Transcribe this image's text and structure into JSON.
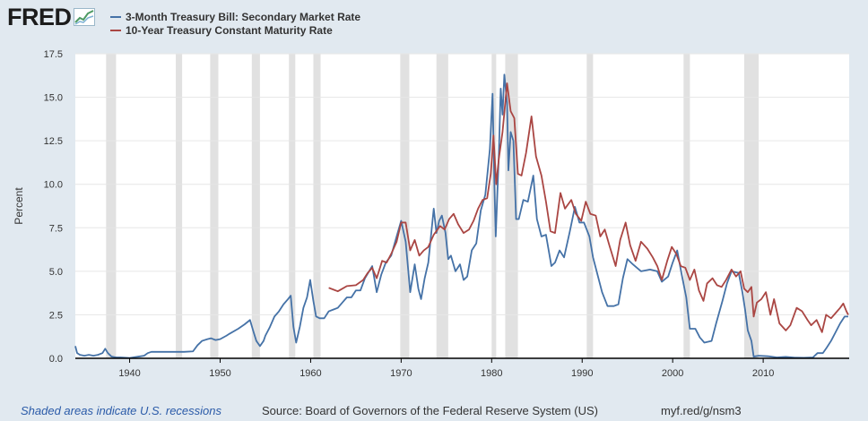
{
  "logo": {
    "text": "FRED"
  },
  "legend": {
    "items": [
      {
        "label": "3-Month Treasury Bill: Secondary Market Rate",
        "color": "#4572a7"
      },
      {
        "label": "10-Year Treasury Constant Maturity Rate",
        "color": "#aa4643"
      }
    ]
  },
  "footer": {
    "recession_note": "Shaded areas indicate U.S. recessions",
    "source": "Source: Board of Governors of the Federal Reserve System (US)",
    "url": "myf.red/g/nsm3"
  },
  "chart_data": {
    "type": "line",
    "title": "",
    "xlabel": "",
    "ylabel": "Percent",
    "xlim": [
      1934,
      2019.5
    ],
    "ylim": [
      0,
      17.5
    ],
    "yticks": [
      "0.0",
      "2.5",
      "5.0",
      "7.5",
      "10.0",
      "12.5",
      "15.0",
      "17.5"
    ],
    "xticks": [
      "1940",
      "1950",
      "1960",
      "1970",
      "1980",
      "1990",
      "2000",
      "2010"
    ],
    "grid": "horizontal",
    "recessions": [
      [
        1937.4,
        1938.5
      ],
      [
        1945.1,
        1945.8
      ],
      [
        1948.9,
        1949.8
      ],
      [
        1953.5,
        1954.4
      ],
      [
        1957.6,
        1958.3
      ],
      [
        1960.3,
        1961.1
      ],
      [
        1969.9,
        1970.9
      ],
      [
        1973.9,
        1975.2
      ],
      [
        1980.0,
        1980.5
      ],
      [
        1981.5,
        1982.9
      ],
      [
        1990.5,
        1991.2
      ],
      [
        2001.2,
        2001.9
      ],
      [
        2007.9,
        2009.5
      ]
    ],
    "series": [
      {
        "name": "3-Month Treasury Bill: Secondary Market Rate",
        "color": "#4572a7",
        "points": [
          [
            1934.0,
            0.7
          ],
          [
            1934.2,
            0.3
          ],
          [
            1934.5,
            0.2
          ],
          [
            1935.0,
            0.15
          ],
          [
            1935.5,
            0.2
          ],
          [
            1936.0,
            0.15
          ],
          [
            1936.5,
            0.2
          ],
          [
            1937.0,
            0.3
          ],
          [
            1937.3,
            0.55
          ],
          [
            1937.6,
            0.3
          ],
          [
            1938.0,
            0.1
          ],
          [
            1938.5,
            0.05
          ],
          [
            1939.0,
            0.05
          ],
          [
            1940.0,
            0.02
          ],
          [
            1941.0,
            0.1
          ],
          [
            1941.6,
            0.15
          ],
          [
            1942.0,
            0.3
          ],
          [
            1942.4,
            0.37
          ],
          [
            1943.0,
            0.37
          ],
          [
            1944.0,
            0.37
          ],
          [
            1945.0,
            0.37
          ],
          [
            1946.0,
            0.37
          ],
          [
            1947.0,
            0.4
          ],
          [
            1947.5,
            0.75
          ],
          [
            1948.0,
            1.0
          ],
          [
            1948.6,
            1.1
          ],
          [
            1949.0,
            1.15
          ],
          [
            1949.5,
            1.05
          ],
          [
            1950.0,
            1.1
          ],
          [
            1950.7,
            1.3
          ],
          [
            1951.0,
            1.4
          ],
          [
            1952.0,
            1.7
          ],
          [
            1952.7,
            1.95
          ],
          [
            1953.3,
            2.2
          ],
          [
            1953.7,
            1.5
          ],
          [
            1954.0,
            1.0
          ],
          [
            1954.4,
            0.7
          ],
          [
            1954.8,
            1.0
          ],
          [
            1955.0,
            1.3
          ],
          [
            1955.5,
            1.8
          ],
          [
            1956.0,
            2.4
          ],
          [
            1956.5,
            2.7
          ],
          [
            1957.0,
            3.1
          ],
          [
            1957.5,
            3.4
          ],
          [
            1957.8,
            3.6
          ],
          [
            1958.1,
            1.8
          ],
          [
            1958.4,
            0.9
          ],
          [
            1958.8,
            1.8
          ],
          [
            1959.2,
            2.9
          ],
          [
            1959.6,
            3.5
          ],
          [
            1959.95,
            4.5
          ],
          [
            1960.3,
            3.3
          ],
          [
            1960.6,
            2.4
          ],
          [
            1961.0,
            2.3
          ],
          [
            1961.5,
            2.3
          ],
          [
            1962.0,
            2.7
          ],
          [
            1962.5,
            2.8
          ],
          [
            1963.0,
            2.9
          ],
          [
            1963.5,
            3.2
          ],
          [
            1964.0,
            3.5
          ],
          [
            1964.5,
            3.5
          ],
          [
            1965.0,
            3.9
          ],
          [
            1965.5,
            3.9
          ],
          [
            1966.0,
            4.6
          ],
          [
            1966.8,
            5.3
          ],
          [
            1967.3,
            3.8
          ],
          [
            1967.8,
            4.8
          ],
          [
            1968.3,
            5.5
          ],
          [
            1968.9,
            5.9
          ],
          [
            1969.5,
            7.0
          ],
          [
            1970.0,
            7.9
          ],
          [
            1970.5,
            6.7
          ],
          [
            1971.0,
            3.8
          ],
          [
            1971.5,
            5.4
          ],
          [
            1971.9,
            4.0
          ],
          [
            1972.2,
            3.4
          ],
          [
            1972.6,
            4.6
          ],
          [
            1973.0,
            5.5
          ],
          [
            1973.6,
            8.6
          ],
          [
            1973.9,
            7.2
          ],
          [
            1974.2,
            7.9
          ],
          [
            1974.5,
            8.2
          ],
          [
            1974.9,
            7.2
          ],
          [
            1975.2,
            5.7
          ],
          [
            1975.5,
            5.9
          ],
          [
            1976.0,
            5.0
          ],
          [
            1976.5,
            5.4
          ],
          [
            1976.9,
            4.5
          ],
          [
            1977.3,
            4.7
          ],
          [
            1977.8,
            6.2
          ],
          [
            1978.3,
            6.6
          ],
          [
            1978.8,
            8.5
          ],
          [
            1979.3,
            9.4
          ],
          [
            1979.8,
            12.0
          ],
          [
            1980.1,
            15.2
          ],
          [
            1980.3,
            10.0
          ],
          [
            1980.45,
            7.0
          ],
          [
            1980.8,
            11.8
          ],
          [
            1981.0,
            15.5
          ],
          [
            1981.2,
            14.0
          ],
          [
            1981.4,
            16.3
          ],
          [
            1981.7,
            14.7
          ],
          [
            1981.85,
            10.8
          ],
          [
            1982.1,
            13.0
          ],
          [
            1982.4,
            12.5
          ],
          [
            1982.7,
            8.0
          ],
          [
            1983.0,
            8.0
          ],
          [
            1983.5,
            9.1
          ],
          [
            1984.0,
            9.0
          ],
          [
            1984.6,
            10.5
          ],
          [
            1985.0,
            8.0
          ],
          [
            1985.5,
            7.0
          ],
          [
            1986.0,
            7.1
          ],
          [
            1986.6,
            5.3
          ],
          [
            1987.0,
            5.5
          ],
          [
            1987.5,
            6.2
          ],
          [
            1988.0,
            5.8
          ],
          [
            1988.6,
            7.2
          ],
          [
            1989.2,
            8.7
          ],
          [
            1989.7,
            7.8
          ],
          [
            1990.2,
            7.8
          ],
          [
            1990.8,
            7.0
          ],
          [
            1991.2,
            5.8
          ],
          [
            1991.7,
            4.8
          ],
          [
            1992.2,
            3.8
          ],
          [
            1992.8,
            3.0
          ],
          [
            1993.5,
            3.0
          ],
          [
            1994.0,
            3.1
          ],
          [
            1994.5,
            4.6
          ],
          [
            1995.0,
            5.7
          ],
          [
            1995.6,
            5.4
          ],
          [
            1996.5,
            5.0
          ],
          [
            1997.5,
            5.1
          ],
          [
            1998.3,
            5.0
          ],
          [
            1998.8,
            4.4
          ],
          [
            1999.5,
            4.7
          ],
          [
            2000.0,
            5.5
          ],
          [
            2000.5,
            6.2
          ],
          [
            2001.0,
            4.8
          ],
          [
            2001.5,
            3.5
          ],
          [
            2001.9,
            1.7
          ],
          [
            2002.5,
            1.7
          ],
          [
            2003.0,
            1.2
          ],
          [
            2003.5,
            0.9
          ],
          [
            2004.3,
            1.0
          ],
          [
            2004.8,
            2.0
          ],
          [
            2005.5,
            3.3
          ],
          [
            2006.0,
            4.3
          ],
          [
            2006.5,
            5.0
          ],
          [
            2007.3,
            4.9
          ],
          [
            2007.7,
            3.8
          ],
          [
            2008.0,
            2.8
          ],
          [
            2008.3,
            1.6
          ],
          [
            2008.7,
            1.0
          ],
          [
            2008.95,
            0.1
          ],
          [
            2009.5,
            0.15
          ],
          [
            2010.5,
            0.12
          ],
          [
            2011.5,
            0.05
          ],
          [
            2012.5,
            0.08
          ],
          [
            2013.5,
            0.04
          ],
          [
            2014.5,
            0.03
          ],
          [
            2015.5,
            0.05
          ],
          [
            2016.0,
            0.3
          ],
          [
            2016.6,
            0.3
          ],
          [
            2017.0,
            0.6
          ],
          [
            2017.5,
            1.0
          ],
          [
            2018.0,
            1.5
          ],
          [
            2018.5,
            2.0
          ],
          [
            2019.0,
            2.4
          ],
          [
            2019.4,
            2.4
          ]
        ]
      },
      {
        "name": "10-Year Treasury Constant Maturity Rate",
        "color": "#aa4643",
        "points": [
          [
            1962.0,
            4.05
          ],
          [
            1962.5,
            3.95
          ],
          [
            1963.0,
            3.85
          ],
          [
            1963.5,
            4.0
          ],
          [
            1964.0,
            4.15
          ],
          [
            1965.0,
            4.2
          ],
          [
            1965.8,
            4.5
          ],
          [
            1966.3,
            4.9
          ],
          [
            1966.8,
            5.2
          ],
          [
            1967.3,
            4.6
          ],
          [
            1967.9,
            5.6
          ],
          [
            1968.4,
            5.5
          ],
          [
            1968.9,
            6.0
          ],
          [
            1969.5,
            6.7
          ],
          [
            1970.0,
            7.8
          ],
          [
            1970.5,
            7.8
          ],
          [
            1971.0,
            6.2
          ],
          [
            1971.5,
            6.8
          ],
          [
            1972.0,
            5.9
          ],
          [
            1972.5,
            6.2
          ],
          [
            1973.0,
            6.4
          ],
          [
            1973.6,
            7.1
          ],
          [
            1974.3,
            7.6
          ],
          [
            1974.8,
            7.4
          ],
          [
            1975.3,
            8.0
          ],
          [
            1975.8,
            8.3
          ],
          [
            1976.3,
            7.7
          ],
          [
            1976.9,
            7.2
          ],
          [
            1977.5,
            7.4
          ],
          [
            1978.0,
            7.9
          ],
          [
            1978.5,
            8.6
          ],
          [
            1979.0,
            9.1
          ],
          [
            1979.5,
            9.2
          ],
          [
            1979.9,
            10.6
          ],
          [
            1980.2,
            12.8
          ],
          [
            1980.5,
            10.0
          ],
          [
            1980.8,
            11.5
          ],
          [
            1981.2,
            13.0
          ],
          [
            1981.7,
            15.8
          ],
          [
            1982.1,
            14.2
          ],
          [
            1982.5,
            13.8
          ],
          [
            1982.9,
            10.6
          ],
          [
            1983.3,
            10.5
          ],
          [
            1983.8,
            11.8
          ],
          [
            1984.4,
            13.9
          ],
          [
            1984.9,
            11.6
          ],
          [
            1985.5,
            10.5
          ],
          [
            1986.0,
            9.0
          ],
          [
            1986.5,
            7.3
          ],
          [
            1987.0,
            7.2
          ],
          [
            1987.6,
            9.5
          ],
          [
            1988.1,
            8.6
          ],
          [
            1988.8,
            9.1
          ],
          [
            1989.3,
            8.3
          ],
          [
            1989.9,
            7.9
          ],
          [
            1990.4,
            9.0
          ],
          [
            1990.9,
            8.3
          ],
          [
            1991.5,
            8.2
          ],
          [
            1992.0,
            7.0
          ],
          [
            1992.5,
            7.4
          ],
          [
            1993.0,
            6.5
          ],
          [
            1993.7,
            5.3
          ],
          [
            1994.2,
            6.8
          ],
          [
            1994.8,
            7.8
          ],
          [
            1995.3,
            6.5
          ],
          [
            1995.9,
            5.6
          ],
          [
            1996.5,
            6.7
          ],
          [
            1997.2,
            6.3
          ],
          [
            1997.8,
            5.8
          ],
          [
            1998.3,
            5.3
          ],
          [
            1998.8,
            4.5
          ],
          [
            1999.4,
            5.6
          ],
          [
            1999.9,
            6.4
          ],
          [
            2000.4,
            6.0
          ],
          [
            2000.9,
            5.3
          ],
          [
            2001.4,
            5.2
          ],
          [
            2001.9,
            4.5
          ],
          [
            2002.4,
            5.1
          ],
          [
            2002.9,
            3.9
          ],
          [
            2003.4,
            3.3
          ],
          [
            2003.8,
            4.3
          ],
          [
            2004.4,
            4.6
          ],
          [
            2004.9,
            4.2
          ],
          [
            2005.4,
            4.1
          ],
          [
            2005.9,
            4.5
          ],
          [
            2006.5,
            5.1
          ],
          [
            2007.0,
            4.7
          ],
          [
            2007.5,
            5.0
          ],
          [
            2007.9,
            4.0
          ],
          [
            2008.3,
            3.8
          ],
          [
            2008.7,
            4.1
          ],
          [
            2008.95,
            2.4
          ],
          [
            2009.3,
            3.2
          ],
          [
            2009.8,
            3.4
          ],
          [
            2010.3,
            3.8
          ],
          [
            2010.8,
            2.5
          ],
          [
            2011.2,
            3.4
          ],
          [
            2011.8,
            2.0
          ],
          [
            2012.5,
            1.6
          ],
          [
            2013.0,
            1.9
          ],
          [
            2013.7,
            2.9
          ],
          [
            2014.3,
            2.7
          ],
          [
            2014.9,
            2.2
          ],
          [
            2015.3,
            1.9
          ],
          [
            2015.9,
            2.2
          ],
          [
            2016.5,
            1.5
          ],
          [
            2016.95,
            2.5
          ],
          [
            2017.5,
            2.3
          ],
          [
            2018.0,
            2.6
          ],
          [
            2018.5,
            2.9
          ],
          [
            2018.85,
            3.15
          ],
          [
            2019.2,
            2.7
          ],
          [
            2019.4,
            2.5
          ]
        ]
      }
    ]
  }
}
